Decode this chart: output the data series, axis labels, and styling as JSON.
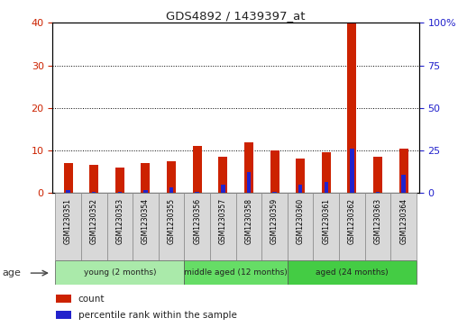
{
  "title": "GDS4892 / 1439397_at",
  "samples": [
    "GSM1230351",
    "GSM1230352",
    "GSM1230353",
    "GSM1230354",
    "GSM1230355",
    "GSM1230356",
    "GSM1230357",
    "GSM1230358",
    "GSM1230359",
    "GSM1230360",
    "GSM1230361",
    "GSM1230362",
    "GSM1230363",
    "GSM1230364"
  ],
  "count_values": [
    7.0,
    6.5,
    6.0,
    7.0,
    7.5,
    11.0,
    8.5,
    12.0,
    10.0,
    8.0,
    9.5,
    40.0,
    8.5,
    10.5
  ],
  "percentile_values": [
    1.5,
    0.8,
    0.5,
    1.5,
    3.5,
    0.5,
    5.0,
    12.5,
    0.8,
    5.0,
    6.5,
    26.0,
    0.5,
    10.5
  ],
  "ylim_left": [
    0,
    40
  ],
  "ylim_right": [
    0,
    100
  ],
  "yticks_left": [
    0,
    10,
    20,
    30,
    40
  ],
  "yticks_right": [
    0,
    25,
    50,
    75,
    100
  ],
  "ytick_right_labels": [
    "0",
    "25",
    "50",
    "75",
    "100%"
  ],
  "groups": [
    {
      "label": "young (2 months)",
      "start": 0,
      "end": 5
    },
    {
      "label": "middle aged (12 months)",
      "start": 5,
      "end": 9
    },
    {
      "label": "aged (24 months)",
      "start": 9,
      "end": 14
    }
  ],
  "group_colors": [
    "#aaeaaa",
    "#66dd66",
    "#44cc44"
  ],
  "count_color": "#CC2200",
  "percentile_color": "#2222CC",
  "legend_count": "count",
  "legend_percentile": "percentile rank within the sample",
  "tick_cell_color": "#cccccc",
  "tick_cell_edge": "#999999"
}
